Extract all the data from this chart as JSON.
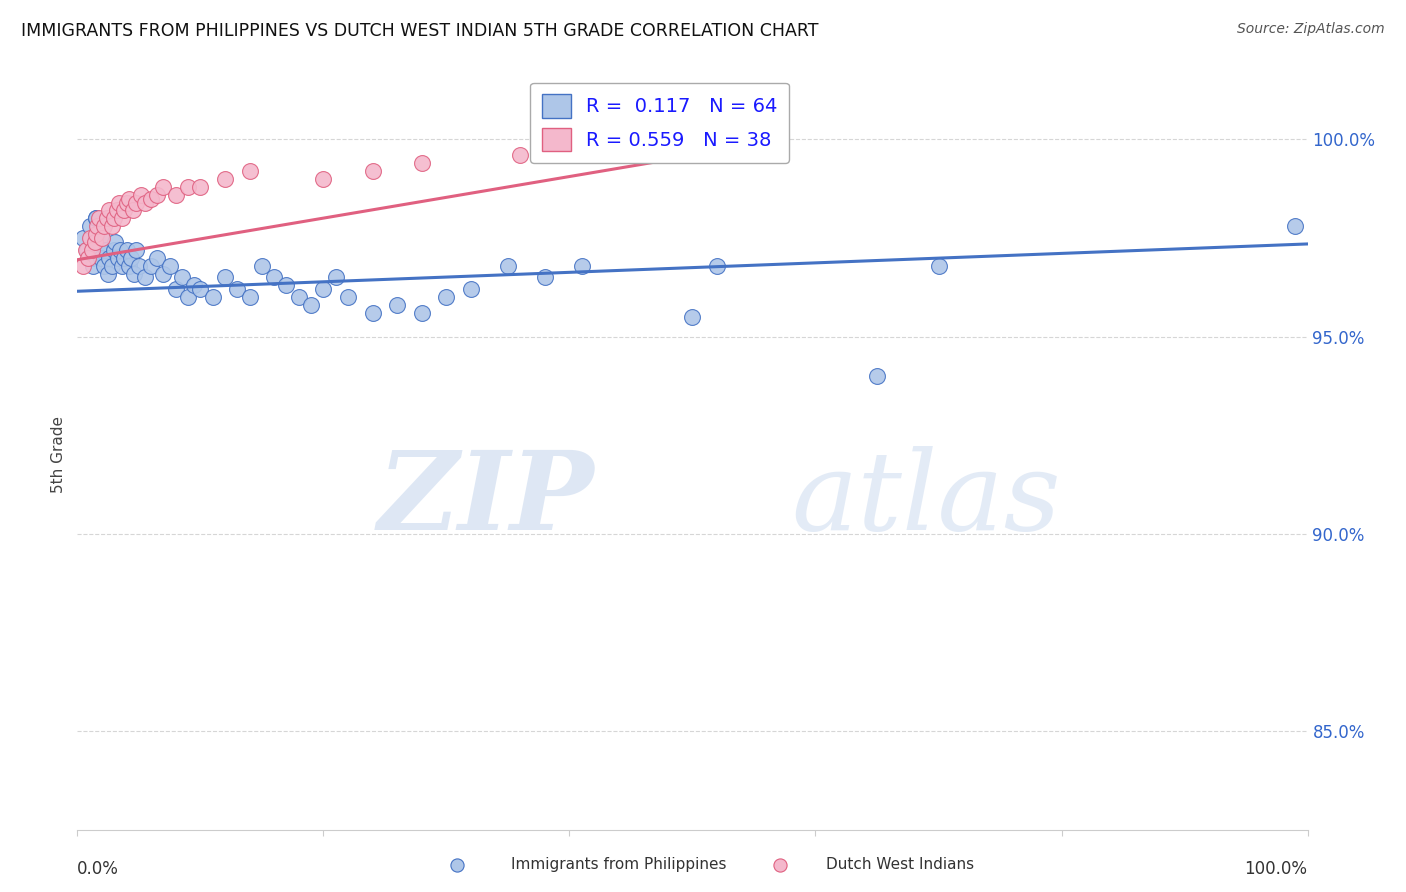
{
  "title": "IMMIGRANTS FROM PHILIPPINES VS DUTCH WEST INDIAN 5TH GRADE CORRELATION CHART",
  "source": "Source: ZipAtlas.com",
  "ylabel": "5th Grade",
  "r_blue": 0.117,
  "n_blue": 64,
  "r_pink": 0.559,
  "n_pink": 38,
  "legend_label_blue": "Immigrants from Philippines",
  "legend_label_pink": "Dutch West Indians",
  "xlim": [
    0.0,
    1.0
  ],
  "ylim": [
    0.825,
    1.015
  ],
  "yticks": [
    0.85,
    0.9,
    0.95,
    1.0
  ],
  "ytick_labels": [
    "85.0%",
    "90.0%",
    "95.0%",
    "100.0%"
  ],
  "blue_color": "#aec6e8",
  "blue_line_color": "#4472c4",
  "pink_color": "#f4b8cc",
  "pink_line_color": "#e06080",
  "blue_scatter_x": [
    0.005,
    0.008,
    0.01,
    0.012,
    0.013,
    0.015,
    0.016,
    0.017,
    0.018,
    0.019,
    0.02,
    0.022,
    0.023,
    0.025,
    0.026,
    0.028,
    0.03,
    0.031,
    0.033,
    0.035,
    0.036,
    0.038,
    0.04,
    0.042,
    0.044,
    0.046,
    0.048,
    0.05,
    0.055,
    0.06,
    0.065,
    0.07,
    0.075,
    0.08,
    0.085,
    0.09,
    0.095,
    0.1,
    0.11,
    0.12,
    0.13,
    0.14,
    0.15,
    0.16,
    0.17,
    0.18,
    0.19,
    0.2,
    0.21,
    0.22,
    0.24,
    0.26,
    0.28,
    0.3,
    0.32,
    0.35,
    0.38,
    0.41,
    0.5,
    0.52,
    0.65,
    0.7,
    0.99,
    0.015
  ],
  "blue_scatter_y": [
    0.975,
    0.972,
    0.978,
    0.97,
    0.968,
    0.98,
    0.976,
    0.974,
    0.972,
    0.97,
    0.975,
    0.968,
    0.972,
    0.966,
    0.97,
    0.968,
    0.972,
    0.974,
    0.97,
    0.972,
    0.968,
    0.97,
    0.972,
    0.968,
    0.97,
    0.966,
    0.972,
    0.968,
    0.965,
    0.968,
    0.97,
    0.966,
    0.968,
    0.962,
    0.965,
    0.96,
    0.963,
    0.962,
    0.96,
    0.965,
    0.962,
    0.96,
    0.968,
    0.965,
    0.963,
    0.96,
    0.958,
    0.962,
    0.965,
    0.96,
    0.956,
    0.958,
    0.956,
    0.96,
    0.962,
    0.968,
    0.965,
    0.968,
    0.955,
    0.968,
    0.94,
    0.968,
    0.978,
    0.98
  ],
  "pink_scatter_x": [
    0.005,
    0.007,
    0.009,
    0.01,
    0.012,
    0.014,
    0.015,
    0.016,
    0.018,
    0.02,
    0.022,
    0.024,
    0.026,
    0.028,
    0.03,
    0.032,
    0.034,
    0.036,
    0.038,
    0.04,
    0.042,
    0.045,
    0.048,
    0.052,
    0.055,
    0.06,
    0.065,
    0.07,
    0.08,
    0.09,
    0.1,
    0.12,
    0.14,
    0.2,
    0.24,
    0.28,
    0.36,
    0.52
  ],
  "pink_scatter_y": [
    0.968,
    0.972,
    0.97,
    0.975,
    0.972,
    0.974,
    0.976,
    0.978,
    0.98,
    0.975,
    0.978,
    0.98,
    0.982,
    0.978,
    0.98,
    0.982,
    0.984,
    0.98,
    0.982,
    0.984,
    0.985,
    0.982,
    0.984,
    0.986,
    0.984,
    0.985,
    0.986,
    0.988,
    0.986,
    0.988,
    0.988,
    0.99,
    0.992,
    0.99,
    0.992,
    0.994,
    0.996,
    0.996
  ],
  "blue_regress_x0": 0.0,
  "blue_regress_y0": 0.9615,
  "blue_regress_x1": 1.0,
  "blue_regress_y1": 0.9735,
  "pink_regress_x0": 0.0,
  "pink_regress_y0": 0.9695,
  "pink_regress_x1": 0.55,
  "pink_regress_y1": 0.9985,
  "watermark_zip": "ZIP",
  "watermark_atlas": "atlas",
  "background_color": "#ffffff",
  "grid_color": "#cccccc"
}
